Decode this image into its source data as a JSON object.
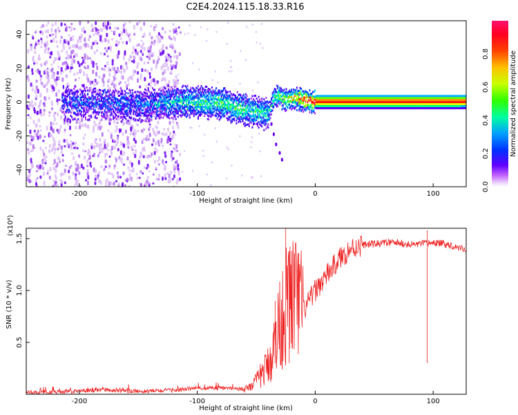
{
  "title": "C2E4.2024.115.18.33.R16",
  "chart_data": [
    {
      "type": "heatmap",
      "xlabel": "Height of straight line (km)",
      "ylabel": "Frequency (Hz)",
      "xlim": [
        -245,
        128
      ],
      "ylim": [
        -50,
        48
      ],
      "xticks": [
        -200,
        -100,
        0,
        100
      ],
      "yticks": [
        -40,
        -20,
        0,
        20,
        40
      ],
      "grid": false,
      "colorbar": {
        "label": "Normalized spectral amplitude",
        "range": [
          0,
          1
        ],
        "ticks": [
          "0.0",
          "0.2",
          "0.4",
          "0.6",
          "0.8"
        ],
        "colormap": [
          "#ffffff",
          "#e8c8ff",
          "#b040f0",
          "#6000ff",
          "#0040ff",
          "#00c0ff",
          "#00ff80",
          "#80ff00",
          "#ffff00",
          "#ff8000",
          "#ff0000",
          "#ff1060"
        ]
      },
      "ridge": {
        "x": [
          -215,
          -180,
          -150,
          -120,
          -100,
          -80,
          -65,
          -50,
          -40,
          -35,
          -30,
          -25,
          -20,
          -15,
          -10,
          0,
          50,
          100,
          128
        ],
        "frequency": [
          1,
          0,
          -1,
          1,
          1,
          0,
          -3,
          -5,
          -6,
          4,
          4,
          2,
          3,
          3,
          2,
          1,
          1,
          1,
          1
        ],
        "amplitude": [
          0.2,
          0.25,
          0.25,
          0.4,
          0.45,
          0.5,
          0.5,
          0.45,
          0.4,
          0.5,
          0.55,
          0.6,
          0.7,
          0.75,
          0.85,
          0.95,
          0.95,
          0.95,
          0.9
        ]
      },
      "branch": {
        "x": [
          -38,
          -36,
          -34,
          -31,
          -29
        ],
        "frequency": [
          -12,
          -18,
          -24,
          -29,
          -33
        ]
      }
    },
    {
      "type": "line",
      "xlabel": "Height of straight line (km)",
      "ylabel": "SNR (10 * v/v)",
      "scale_label": "(x10⁴)",
      "xlim": [
        -245,
        128
      ],
      "ylim": [
        0,
        1.6
      ],
      "xticks": [
        -200,
        -100,
        0,
        100
      ],
      "yticks": [
        "0.5",
        "1.0",
        "1.5"
      ],
      "color": "#ee2020",
      "series": [
        {
          "x": [
            -245,
            -220,
            -200,
            -180,
            -160,
            -140,
            -120,
            -100,
            -80,
            -60,
            -50,
            -45,
            -40,
            -35,
            -30,
            -25,
            -20,
            -15,
            -10,
            0,
            10,
            20,
            30,
            40,
            50,
            60,
            70,
            80,
            90,
            100,
            110,
            120,
            128
          ],
          "values": [
            0.02,
            0.02,
            0.03,
            0.04,
            0.03,
            0.03,
            0.04,
            0.06,
            0.06,
            0.05,
            0.12,
            0.2,
            0.28,
            0.45,
            0.7,
            0.85,
            0.95,
            0.9,
            0.8,
            1.0,
            1.15,
            1.3,
            1.4,
            1.44,
            1.45,
            1.46,
            1.46,
            1.44,
            1.45,
            1.46,
            1.45,
            1.42,
            1.4
          ],
          "spikes": [
            {
              "x": -25,
              "value": 1.6
            },
            {
              "x": -22,
              "value": 1.38
            },
            {
              "x": -34,
              "value": 0.9
            },
            {
              "x": 95,
              "value": 1.58
            }
          ]
        }
      ]
    }
  ]
}
